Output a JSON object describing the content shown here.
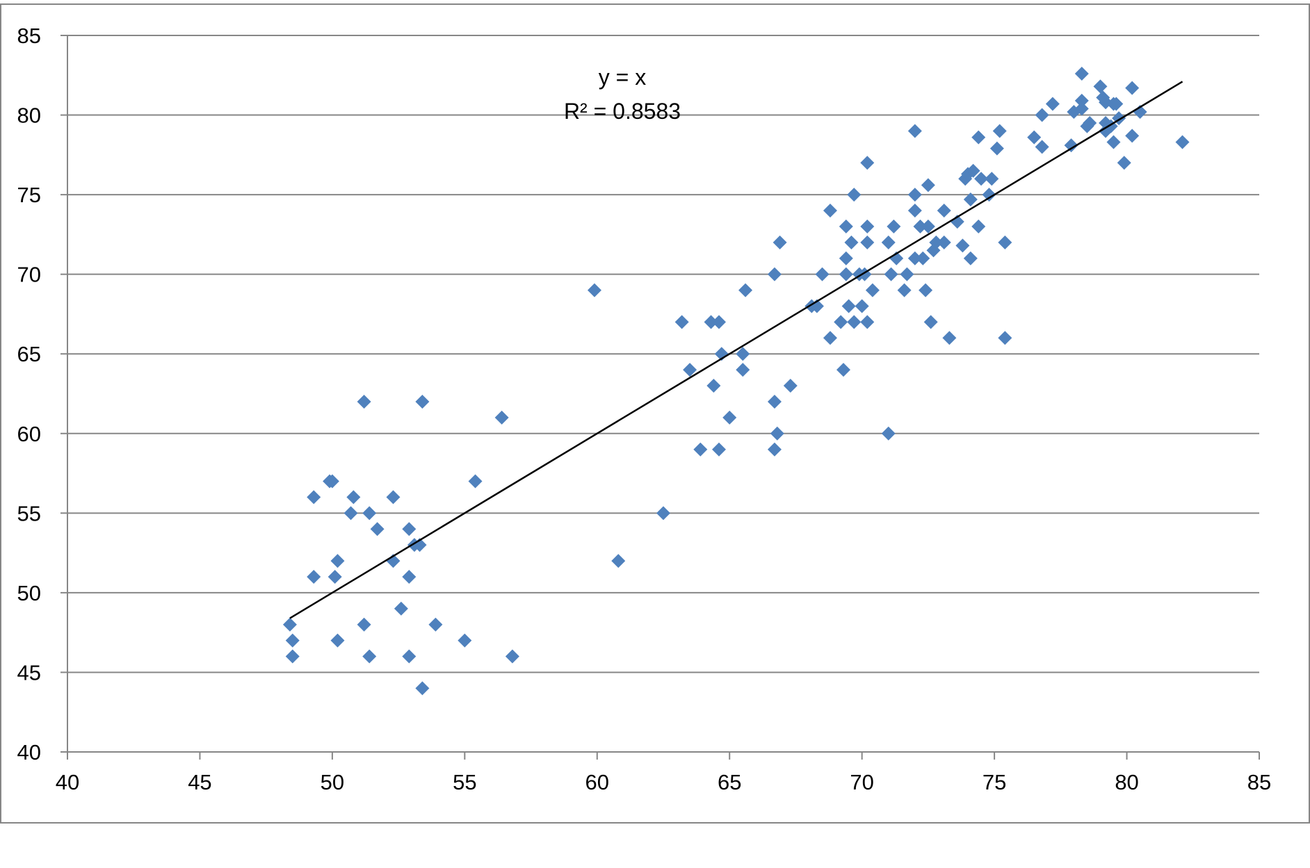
{
  "chart_data": {
    "type": "scatter",
    "title": "",
    "xlabel": "",
    "ylabel": "",
    "xlim": [
      40,
      85
    ],
    "ylim": [
      40,
      85
    ],
    "x_ticks": [
      "40",
      "45",
      "50",
      "55",
      "60",
      "65",
      "70",
      "75",
      "80",
      "85"
    ],
    "y_ticks": [
      "40",
      "45",
      "50",
      "55",
      "60",
      "65",
      "70",
      "75",
      "80",
      "85"
    ],
    "grid": "horizontal",
    "legend": "none",
    "marker": "diamond",
    "colors": {
      "points": "#4F81BD",
      "trendline": "#000000",
      "grid": "#868686",
      "frame": "#868686"
    },
    "trendline": {
      "type": "linear",
      "equation": "y = x",
      "r_squared": "R² = 0.8583",
      "x_range": [
        48.4,
        82.1
      ]
    },
    "series": [
      {
        "points": [
          [
            48.4,
            48
          ],
          [
            48.5,
            47
          ],
          [
            48.5,
            46
          ],
          [
            49.3,
            56
          ],
          [
            49.3,
            51
          ],
          [
            49.9,
            57
          ],
          [
            50.0,
            57
          ],
          [
            50.1,
            51
          ],
          [
            50.2,
            52
          ],
          [
            50.2,
            47
          ],
          [
            50.7,
            55
          ],
          [
            50.8,
            56
          ],
          [
            51.2,
            62
          ],
          [
            51.2,
            48
          ],
          [
            51.4,
            55
          ],
          [
            51.4,
            46
          ],
          [
            51.7,
            54
          ],
          [
            52.3,
            56
          ],
          [
            52.3,
            52
          ],
          [
            52.6,
            49
          ],
          [
            52.9,
            54
          ],
          [
            52.9,
            51
          ],
          [
            52.9,
            46
          ],
          [
            53.1,
            53
          ],
          [
            53.3,
            53
          ],
          [
            53.4,
            62
          ],
          [
            53.4,
            44
          ],
          [
            53.9,
            48
          ],
          [
            55.0,
            47
          ],
          [
            55.4,
            57
          ],
          [
            56.4,
            61
          ],
          [
            56.8,
            46
          ],
          [
            59.9,
            69
          ],
          [
            60.8,
            52
          ],
          [
            62.5,
            55
          ],
          [
            63.2,
            67
          ],
          [
            63.5,
            64
          ],
          [
            63.9,
            59
          ],
          [
            64.3,
            67
          ],
          [
            64.4,
            63
          ],
          [
            64.6,
            67
          ],
          [
            64.6,
            59
          ],
          [
            64.7,
            65
          ],
          [
            65.0,
            61
          ],
          [
            65.5,
            65
          ],
          [
            65.5,
            64
          ],
          [
            65.6,
            69
          ],
          [
            66.7,
            70
          ],
          [
            66.7,
            62
          ],
          [
            66.7,
            59
          ],
          [
            66.8,
            60
          ],
          [
            66.9,
            72
          ],
          [
            67.3,
            63
          ],
          [
            68.1,
            68
          ],
          [
            68.3,
            68
          ],
          [
            68.5,
            70
          ],
          [
            68.8,
            74
          ],
          [
            68.8,
            66
          ],
          [
            69.2,
            67
          ],
          [
            69.3,
            64
          ],
          [
            69.4,
            73
          ],
          [
            69.4,
            71
          ],
          [
            69.4,
            70
          ],
          [
            69.5,
            68
          ],
          [
            69.6,
            72
          ],
          [
            69.7,
            75
          ],
          [
            69.7,
            67
          ],
          [
            69.9,
            70
          ],
          [
            70.0,
            68
          ],
          [
            70.1,
            70
          ],
          [
            70.2,
            77
          ],
          [
            70.2,
            73
          ],
          [
            70.2,
            72
          ],
          [
            70.2,
            67
          ],
          [
            70.4,
            69
          ],
          [
            71.0,
            72
          ],
          [
            71.0,
            60
          ],
          [
            71.1,
            70
          ],
          [
            71.2,
            73
          ],
          [
            71.3,
            71
          ],
          [
            71.6,
            69
          ],
          [
            71.7,
            70
          ],
          [
            72.0,
            79
          ],
          [
            72.0,
            75
          ],
          [
            72.0,
            74
          ],
          [
            72.0,
            71
          ],
          [
            72.2,
            73
          ],
          [
            72.3,
            71
          ],
          [
            72.4,
            69
          ],
          [
            72.5,
            75.6
          ],
          [
            72.5,
            73
          ],
          [
            72.6,
            67
          ],
          [
            72.7,
            71.5
          ],
          [
            72.8,
            72
          ],
          [
            73.1,
            74
          ],
          [
            73.1,
            72
          ],
          [
            73.3,
            66
          ],
          [
            73.6,
            73.3
          ],
          [
            73.8,
            71.8
          ],
          [
            73.9,
            76
          ],
          [
            74.0,
            76.3
          ],
          [
            74.1,
            71
          ],
          [
            74.1,
            74.7
          ],
          [
            74.2,
            76.5
          ],
          [
            74.4,
            78.6
          ],
          [
            74.4,
            73
          ],
          [
            74.5,
            76
          ],
          [
            74.8,
            75
          ],
          [
            74.9,
            76
          ],
          [
            75.1,
            77.9
          ],
          [
            75.2,
            79
          ],
          [
            75.4,
            72
          ],
          [
            75.4,
            66
          ],
          [
            76.5,
            78.6
          ],
          [
            76.8,
            80
          ],
          [
            76.8,
            78
          ],
          [
            77.2,
            80.7
          ],
          [
            77.9,
            78.1
          ],
          [
            78.0,
            80.2
          ],
          [
            78.3,
            80.9
          ],
          [
            78.3,
            82.6
          ],
          [
            78.3,
            80.4
          ],
          [
            78.5,
            79.3
          ],
          [
            78.6,
            79.5
          ],
          [
            79.0,
            81.8
          ],
          [
            79.1,
            81.1
          ],
          [
            79.2,
            80.8
          ],
          [
            79.2,
            79.5
          ],
          [
            79.2,
            79
          ],
          [
            79.4,
            79.3
          ],
          [
            79.5,
            80.7
          ],
          [
            79.5,
            78.3
          ],
          [
            79.6,
            80.7
          ],
          [
            79.7,
            79.8
          ],
          [
            79.9,
            77
          ],
          [
            80.2,
            81.7
          ],
          [
            80.2,
            78.7
          ],
          [
            80.5,
            80.2
          ],
          [
            82.1,
            78.3
          ]
        ]
      }
    ]
  }
}
